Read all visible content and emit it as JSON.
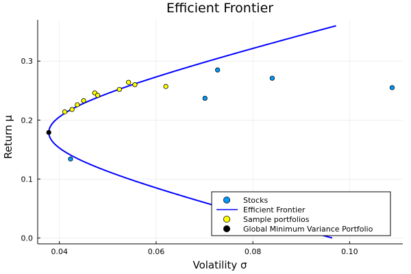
{
  "chart_data": {
    "type": "scatter",
    "title": "Efficient Frontier",
    "xlabel": "Volatility σ",
    "ylabel": "Return μ",
    "xlim": [
      0.0355,
      0.111
    ],
    "ylim": [
      -0.01,
      0.37
    ],
    "x_ticks": [
      0.04,
      0.06,
      0.08,
      0.1
    ],
    "x_tick_labels": [
      "0.04",
      "0.06",
      "0.08",
      "0.10"
    ],
    "y_ticks": [
      0.0,
      0.1,
      0.2,
      0.3
    ],
    "y_tick_labels": [
      "0.0",
      "0.1",
      "0.2",
      "0.3"
    ],
    "grid": true,
    "legend_position": "bottom-right",
    "series": [
      {
        "name": "Stocks",
        "kind": "scatter",
        "color": "#009AFA",
        "points": [
          {
            "x": 0.0423,
            "y": 0.134
          },
          {
            "x": 0.0701,
            "y": 0.237
          },
          {
            "x": 0.0727,
            "y": 0.285
          },
          {
            "x": 0.084,
            "y": 0.271
          },
          {
            "x": 0.1088,
            "y": 0.255
          }
        ]
      },
      {
        "name": "Efficient Frontier",
        "kind": "line",
        "color": "#0000FF",
        "min_volatility": 0.0378,
        "min_return": 0.179,
        "upper_return": 0.36,
        "upper_volatility": 0.0972,
        "lower_return": 0.0,
        "lower_volatility": 0.0964
      },
      {
        "name": "Sample portfolios",
        "kind": "scatter",
        "color": "#FFFF00",
        "points": [
          {
            "x": 0.0411,
            "y": 0.214
          },
          {
            "x": 0.0426,
            "y": 0.218
          },
          {
            "x": 0.0437,
            "y": 0.226
          },
          {
            "x": 0.045,
            "y": 0.233
          },
          {
            "x": 0.0473,
            "y": 0.246
          },
          {
            "x": 0.0479,
            "y": 0.242
          },
          {
            "x": 0.0524,
            "y": 0.252
          },
          {
            "x": 0.0543,
            "y": 0.264
          },
          {
            "x": 0.0556,
            "y": 0.26
          },
          {
            "x": 0.062,
            "y": 0.257
          }
        ]
      },
      {
        "name": "Global Minimum Variance Portfolio",
        "kind": "scatter",
        "color": "#000000",
        "points": [
          {
            "x": 0.0378,
            "y": 0.179
          }
        ]
      }
    ]
  }
}
